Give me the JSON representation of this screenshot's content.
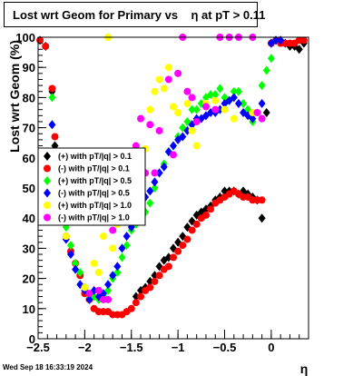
{
  "header": {
    "title": "Lost wrt Geom for Primary vs    η at pT > 0.11",
    "timestamp": "Wed Sep 18 16:33:19 2024"
  },
  "chart_data": {
    "type": "scatter",
    "title": "Lost wrt Geom for Primary vs    η at pT > 0.11",
    "xlabel": "η",
    "ylabel": "Lost wrt Geom (%)",
    "xlim": [
      -2.5,
      0.4
    ],
    "ylim": [
      0,
      100
    ],
    "xticks": [
      -2.5,
      -2,
      -1.5,
      -1,
      -0.5,
      0
    ],
    "xtick_labels": [
      "−2.5",
      "−2",
      "−1.5",
      "−1",
      "−0.5",
      "0"
    ],
    "yticks": [
      0,
      10,
      20,
      30,
      40,
      50,
      60,
      70,
      80,
      90,
      100
    ],
    "ytick_labels": [
      "0",
      "10",
      "20",
      "30",
      "40",
      "50",
      "60",
      "70",
      "80",
      "90",
      "100"
    ],
    "grid": false,
    "legend_position": "middle-left",
    "series": [
      {
        "name": "(+) with pT/|q| > 0.1",
        "color": "#000000",
        "marker": "diamond",
        "points": [
          [
            -2.48,
            99
          ],
          [
            -2.42,
            97
          ],
          [
            -2.35,
            82
          ],
          [
            -2.32,
            64
          ],
          [
            -1.45,
            14
          ],
          [
            -1.4,
            16
          ],
          [
            -1.35,
            17
          ],
          [
            -1.3,
            19
          ],
          [
            -1.25,
            21
          ],
          [
            -1.2,
            24
          ],
          [
            -1.15,
            26
          ],
          [
            -1.1,
            27
          ],
          [
            -1.05,
            30
          ],
          [
            -1.0,
            32
          ],
          [
            -0.95,
            34
          ],
          [
            -0.9,
            37
          ],
          [
            -0.85,
            39
          ],
          [
            -0.8,
            41
          ],
          [
            -0.75,
            42
          ],
          [
            -0.7,
            43
          ],
          [
            -0.65,
            44
          ],
          [
            -0.6,
            46
          ],
          [
            -0.55,
            47
          ],
          [
            -0.5,
            49
          ],
          [
            -0.45,
            49
          ],
          [
            -0.4,
            49
          ],
          [
            -0.35,
            48
          ],
          [
            -0.3,
            49
          ],
          [
            -0.25,
            48
          ],
          [
            -0.2,
            47
          ],
          [
            -0.15,
            46
          ],
          [
            -0.1,
            40
          ],
          [
            -0.05,
            75
          ],
          [
            0.0,
            98
          ],
          [
            0.05,
            99
          ],
          [
            0.1,
            99
          ],
          [
            0.15,
            98
          ],
          [
            0.2,
            97
          ],
          [
            0.25,
            97
          ],
          [
            0.3,
            96
          ],
          [
            0.35,
            98
          ]
        ]
      },
      {
        "name": "(-) with pT/|q| > 0.1",
        "color": "#ff0000",
        "marker": "circle",
        "points": [
          [
            -2.48,
            99
          ],
          [
            -2.42,
            97
          ],
          [
            -2.35,
            83
          ],
          [
            -2.32,
            67
          ],
          [
            -2.2,
            34
          ],
          [
            -2.15,
            29
          ],
          [
            -2.1,
            25
          ],
          [
            -2.05,
            21
          ],
          [
            -2.0,
            15
          ],
          [
            -1.95,
            13
          ],
          [
            -1.9,
            10
          ],
          [
            -1.85,
            9
          ],
          [
            -1.8,
            9
          ],
          [
            -1.75,
            9
          ],
          [
            -1.7,
            8
          ],
          [
            -1.65,
            8
          ],
          [
            -1.6,
            8
          ],
          [
            -1.55,
            9
          ],
          [
            -1.5,
            10
          ],
          [
            -1.45,
            12
          ],
          [
            -1.4,
            14
          ],
          [
            -1.35,
            16
          ],
          [
            -1.3,
            17
          ],
          [
            -1.25,
            19
          ],
          [
            -1.2,
            21
          ],
          [
            -1.15,
            23
          ],
          [
            -1.1,
            24
          ],
          [
            -1.05,
            27
          ],
          [
            -1.0,
            29
          ],
          [
            -0.95,
            31
          ],
          [
            -0.9,
            33
          ],
          [
            -0.85,
            36
          ],
          [
            -0.8,
            38
          ],
          [
            -0.75,
            40
          ],
          [
            -0.7,
            41
          ],
          [
            -0.65,
            43
          ],
          [
            -0.6,
            45
          ],
          [
            -0.55,
            46
          ],
          [
            -0.5,
            47
          ],
          [
            -0.45,
            48
          ],
          [
            -0.4,
            49
          ],
          [
            -0.35,
            48
          ],
          [
            -0.3,
            47
          ],
          [
            -0.25,
            47
          ],
          [
            -0.2,
            46
          ],
          [
            -0.15,
            46
          ],
          [
            -0.1,
            46
          ],
          [
            0.0,
            98
          ],
          [
            0.05,
            99
          ],
          [
            0.1,
            98
          ],
          [
            0.15,
            98
          ],
          [
            0.2,
            98
          ],
          [
            0.25,
            98
          ],
          [
            0.3,
            99
          ],
          [
            0.35,
            99
          ]
        ]
      },
      {
        "name": "(+) with pT/|q| > 0.5",
        "color": "#00ff00",
        "marker": "diamond",
        "points": [
          [
            -2.35,
            80
          ],
          [
            -2.3,
            60
          ],
          [
            -2.25,
            44
          ],
          [
            -2.2,
            37
          ],
          [
            -2.15,
            31
          ],
          [
            -2.1,
            25
          ],
          [
            -2.05,
            22
          ],
          [
            -2.0,
            17
          ],
          [
            -1.95,
            14
          ],
          [
            -1.9,
            14
          ],
          [
            -1.85,
            13
          ],
          [
            -1.8,
            14
          ],
          [
            -1.75,
            16
          ],
          [
            -1.7,
            20
          ],
          [
            -1.65,
            22
          ],
          [
            -1.6,
            27
          ],
          [
            -1.55,
            31
          ],
          [
            -1.5,
            36
          ],
          [
            -1.45,
            38
          ],
          [
            -1.4,
            40
          ],
          [
            -1.35,
            42
          ],
          [
            -1.3,
            45
          ],
          [
            -1.25,
            50
          ],
          [
            -1.2,
            55
          ],
          [
            -1.15,
            58
          ],
          [
            -1.1,
            62
          ],
          [
            -1.05,
            64
          ],
          [
            -1.0,
            67
          ],
          [
            -0.95,
            70
          ],
          [
            -0.9,
            72
          ],
          [
            -0.85,
            76
          ],
          [
            -0.8,
            76
          ],
          [
            -0.75,
            78
          ],
          [
            -0.7,
            80
          ],
          [
            -0.65,
            81
          ],
          [
            -0.6,
            81
          ],
          [
            -0.55,
            83
          ],
          [
            -0.5,
            80
          ],
          [
            -0.45,
            79
          ],
          [
            -0.4,
            82
          ],
          [
            -0.35,
            82
          ],
          [
            -0.3,
            78
          ],
          [
            -0.25,
            76
          ],
          [
            -0.2,
            72
          ],
          [
            -0.1,
            84
          ],
          [
            -0.05,
            89
          ],
          [
            0.0,
            93
          ],
          [
            0.05,
            99
          ]
        ]
      },
      {
        "name": "(-) with pT/|q| > 0.5",
        "color": "#0000ff",
        "marker": "diamond",
        "points": [
          [
            -2.35,
            71
          ],
          [
            -2.3,
            55
          ],
          [
            -2.25,
            40
          ],
          [
            -2.2,
            33
          ],
          [
            -2.15,
            28
          ],
          [
            -2.1,
            23
          ],
          [
            -2.05,
            18
          ],
          [
            -2.0,
            16
          ],
          [
            -1.95,
            13
          ],
          [
            -1.9,
            16
          ],
          [
            -1.85,
            14
          ],
          [
            -1.8,
            15
          ],
          [
            -1.75,
            18
          ],
          [
            -1.7,
            21
          ],
          [
            -1.65,
            24
          ],
          [
            -1.6,
            30
          ],
          [
            -1.55,
            34
          ],
          [
            -1.5,
            37
          ],
          [
            -1.45,
            40
          ],
          [
            -1.4,
            43
          ],
          [
            -1.35,
            47
          ],
          [
            -1.3,
            49
          ],
          [
            -1.25,
            52
          ],
          [
            -1.2,
            55
          ],
          [
            -1.15,
            57
          ],
          [
            -1.1,
            62
          ],
          [
            -1.05,
            64
          ],
          [
            -1.0,
            66
          ],
          [
            -0.95,
            67
          ],
          [
            -0.9,
            69
          ],
          [
            -0.85,
            71
          ],
          [
            -0.8,
            73
          ],
          [
            -0.75,
            73
          ],
          [
            -0.7,
            74
          ],
          [
            -0.65,
            75
          ],
          [
            -0.6,
            75
          ],
          [
            -0.55,
            76
          ],
          [
            -0.5,
            78
          ],
          [
            -0.45,
            79
          ],
          [
            -0.4,
            80
          ],
          [
            -0.35,
            78
          ],
          [
            -0.3,
            75
          ],
          [
            -0.25,
            74
          ],
          [
            -0.2,
            73
          ],
          [
            -0.1,
            78
          ],
          [
            0.0,
            98
          ],
          [
            0.05,
            99
          ],
          [
            0.1,
            99
          ]
        ]
      },
      {
        "name": "(+) with pT/|q| > 1.0",
        "color": "#ffff00",
        "marker": "circle",
        "points": [
          [
            -2.2,
            34
          ],
          [
            -2.0,
            17
          ],
          [
            -1.9,
            25
          ],
          [
            -1.85,
            22
          ],
          [
            -1.8,
            34
          ],
          [
            -1.75,
            100
          ],
          [
            -1.7,
            30
          ],
          [
            -1.65,
            38
          ],
          [
            -1.6,
            50
          ],
          [
            -1.55,
            45
          ],
          [
            -1.5,
            53
          ],
          [
            -1.45,
            61
          ],
          [
            -1.4,
            58
          ],
          [
            -1.35,
            63
          ],
          [
            -1.3,
            76
          ],
          [
            -1.25,
            82
          ],
          [
            -1.2,
            86
          ],
          [
            -1.15,
            83
          ],
          [
            -1.1,
            90
          ],
          [
            -1.05,
            77
          ],
          [
            -1.0,
            75
          ],
          [
            -0.95,
            100
          ],
          [
            -0.9,
            78
          ],
          [
            -0.85,
            69
          ],
          [
            -0.8,
            64
          ],
          [
            -0.7,
            78
          ],
          [
            -0.6,
            79
          ],
          [
            -0.5,
            76
          ],
          [
            -0.4,
            73
          ],
          [
            -0.2,
            75
          ]
        ]
      },
      {
        "name": "(-) with pT/|q| > 1.0",
        "color": "#ff00ff",
        "marker": "circle",
        "points": [
          [
            -1.95,
            15
          ],
          [
            -1.85,
            16
          ],
          [
            -1.8,
            13
          ],
          [
            -1.75,
            13
          ],
          [
            -1.7,
            36
          ],
          [
            -1.6,
            48
          ],
          [
            -1.55,
            45
          ],
          [
            -1.5,
            54
          ],
          [
            -1.45,
            64
          ],
          [
            -1.4,
            73
          ],
          [
            -1.35,
            55
          ],
          [
            -1.3,
            71
          ],
          [
            -1.25,
            55
          ],
          [
            -1.2,
            69
          ],
          [
            -1.1,
            86
          ],
          [
            -1.05,
            61
          ],
          [
            -1.0,
            88
          ],
          [
            -0.95,
            100
          ],
          [
            -0.9,
            82
          ],
          [
            -0.85,
            80
          ],
          [
            -0.8,
            72
          ],
          [
            -0.7,
            77
          ],
          [
            -0.6,
            76
          ],
          [
            -0.55,
            100
          ],
          [
            -0.45,
            100
          ],
          [
            -0.35,
            100
          ],
          [
            -0.2,
            100
          ],
          [
            -0.15,
            75
          ],
          [
            -0.1,
            73
          ]
        ]
      }
    ]
  }
}
